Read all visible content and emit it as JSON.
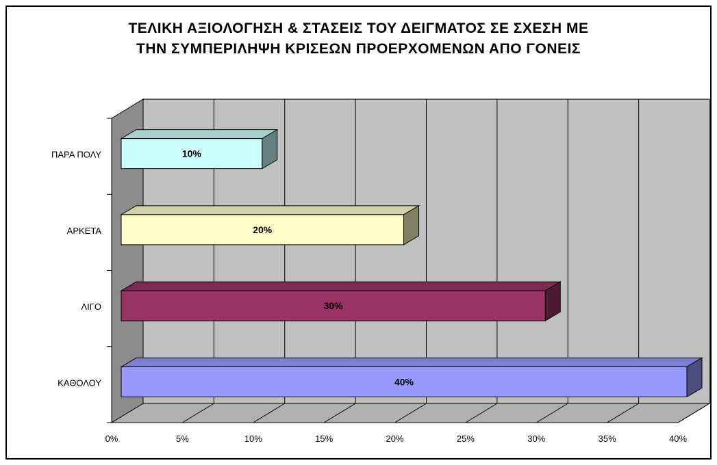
{
  "chart_data": {
    "type": "bar",
    "orientation": "horizontal",
    "title_line1": "ΤΕΛΙΚΗ ΑΞΙΟΛΟΓΗΣΗ & ΣΤΑΣΕΙΣ ΤΟΥ ΔΕΙΓΜΑΤΟΣ ΣΕ ΣΧΕΣΗ ΜΕ",
    "title_line2": "ΤΗΝ ΣΥΜΠΕΡΙΛΗΨΗ ΚΡΙΣΕΩΝ ΠΡΟΕΡΧΟΜΕΝΩΝ ΑΠΟ ΓΟΝΕΙΣ",
    "categories": [
      "ΠΑΡΑ ΠΟΛΥ",
      "ΑΡΚΕΤΑ",
      "ΛΙΓΟ",
      "ΚΑΘΟΛΟΥ"
    ],
    "values": [
      10,
      20,
      30,
      40
    ],
    "data_labels": [
      "10%",
      "20%",
      "30%",
      "40%"
    ],
    "bar_colors": [
      "#ccffff",
      "#ffffcc",
      "#993366",
      "#9999ff"
    ],
    "xlim": [
      0,
      40
    ],
    "x_ticks": [
      "0%",
      "5%",
      "10%",
      "15%",
      "20%",
      "25%",
      "30%",
      "35%",
      "40%"
    ],
    "grid": true,
    "three_d": true,
    "wall_color": "#c0c0c0",
    "legend": "none"
  }
}
